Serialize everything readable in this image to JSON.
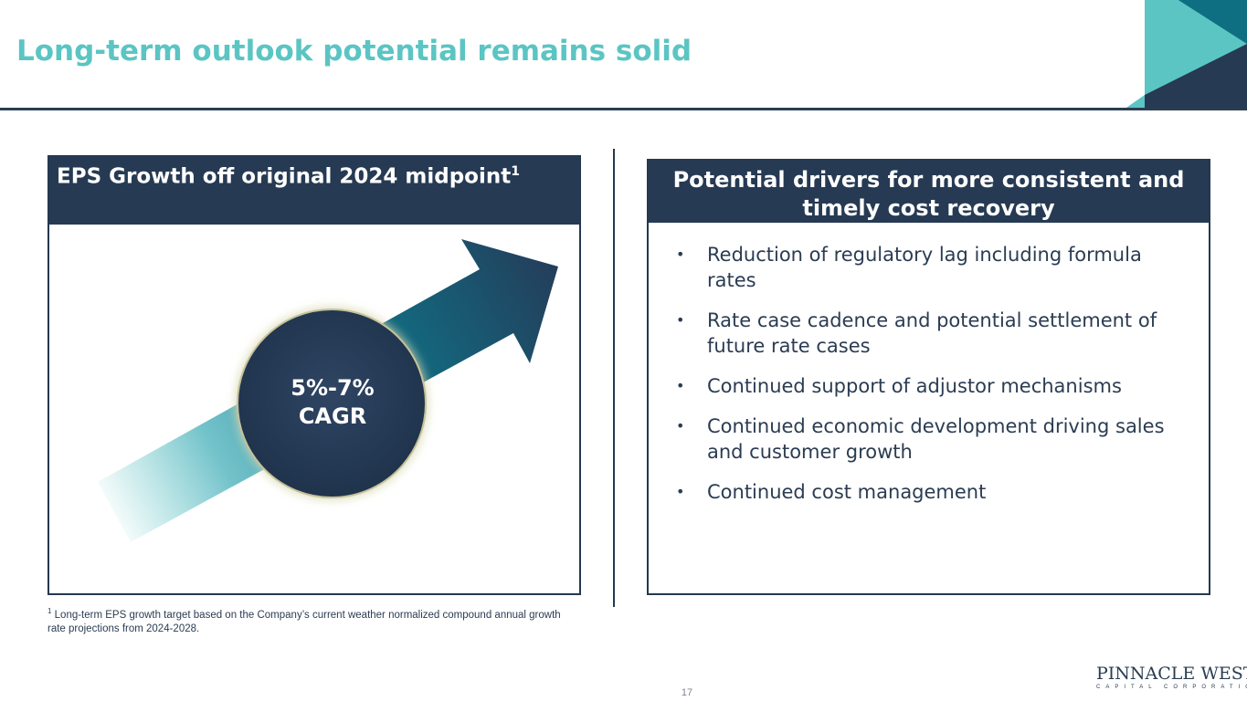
{
  "slide": {
    "title": "Long-term outlook potential remains solid",
    "page_number": "17"
  },
  "left_panel": {
    "header": "EPS Growth off original 2024 midpoint",
    "header_sup": "1",
    "badge_line1": "5%-7%",
    "badge_line2": "CAGR"
  },
  "right_panel": {
    "header_line1": "Potential drivers for more consistent and",
    "header_line2": "timely cost recovery",
    "bullets": [
      "Reduction of regulatory lag including formula rates",
      "Rate case cadence and potential settlement of future rate cases",
      "Continued support of adjustor mechanisms",
      "Continued economic development driving sales and customer growth",
      "Continued cost management"
    ]
  },
  "footnote": {
    "marker": "1",
    "text": " Long-term EPS growth target based on the Company’s current weather normalized compound annual growth rate projections from 2024-2028."
  },
  "logo": {
    "name": "PINNACLE WEST",
    "subtitle": "CAPITAL CORPORATION"
  },
  "colors": {
    "accent_teal": "#5bc5c3",
    "navy": "#263a53",
    "arrow_teal": "#17758a"
  }
}
